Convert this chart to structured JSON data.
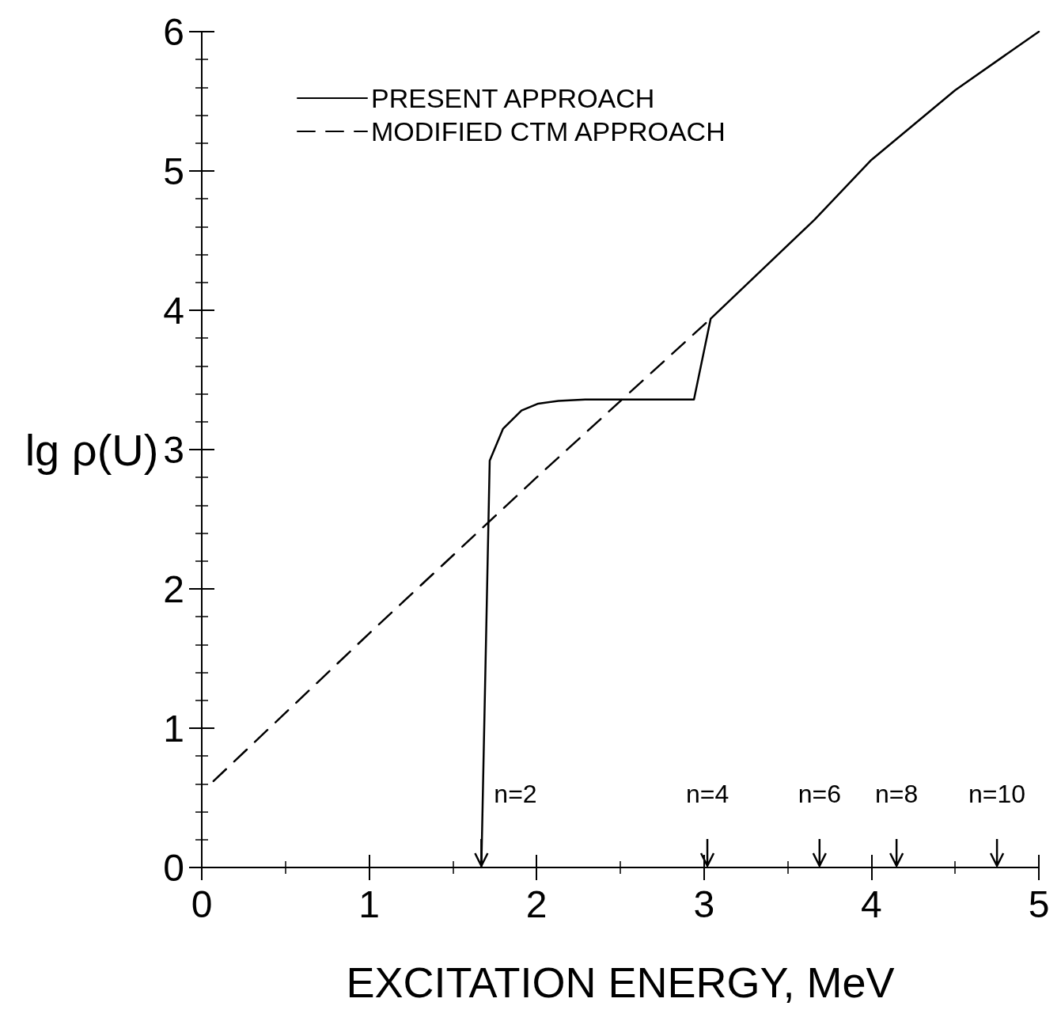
{
  "chart_data": {
    "type": "line",
    "xlabel": "EXCITATION ENERGY, MeV",
    "ylabel": "lg ρ(U)",
    "xlim": [
      0,
      5
    ],
    "xticks": [
      0,
      1,
      2,
      3,
      4,
      5
    ],
    "ylim": [
      0,
      6
    ],
    "yticks": [
      0,
      1,
      2,
      3,
      4,
      5,
      6
    ],
    "grid": false,
    "legend": "top left",
    "marker": "none",
    "series": [
      {
        "name": "PRESENT APPROACH",
        "color": "#000000",
        "line_style": "solid",
        "x": [
          1.67,
          1.72,
          1.8,
          1.91,
          2.01,
          2.13,
          2.29,
          2.94,
          3.04,
          3.66,
          4.0,
          4.5,
          5.0
        ],
        "values": [
          0,
          2.92,
          3.15,
          3.28,
          3.33,
          3.35,
          3.36,
          3.36,
          3.94,
          4.65,
          5.08,
          5.58,
          6.0
        ]
      },
      {
        "name": "MODIFIED CTM APPROACH",
        "color": "#000000",
        "line_style": "dashed",
        "x": [
          0.07,
          1.0,
          2.0,
          3.04
        ],
        "values": [
          0.62,
          1.68,
          2.8,
          3.94
        ]
      }
    ],
    "annotations": [
      {
        "text": "n=2",
        "x": 1.67,
        "y": 0
      },
      "n=4",
      "n=6",
      "n=8",
      "n=10"
    ]
  }
}
